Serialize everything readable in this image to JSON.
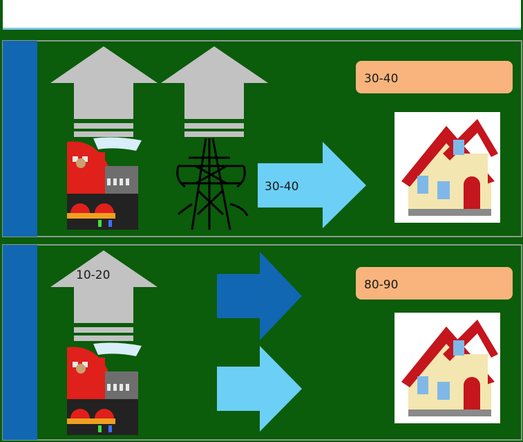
{
  "panels": [
    {
      "box_label": "30-40",
      "arrow_label": "30-40"
    },
    {
      "box_label": "80-90",
      "arrow_label": "10-20"
    }
  ]
}
